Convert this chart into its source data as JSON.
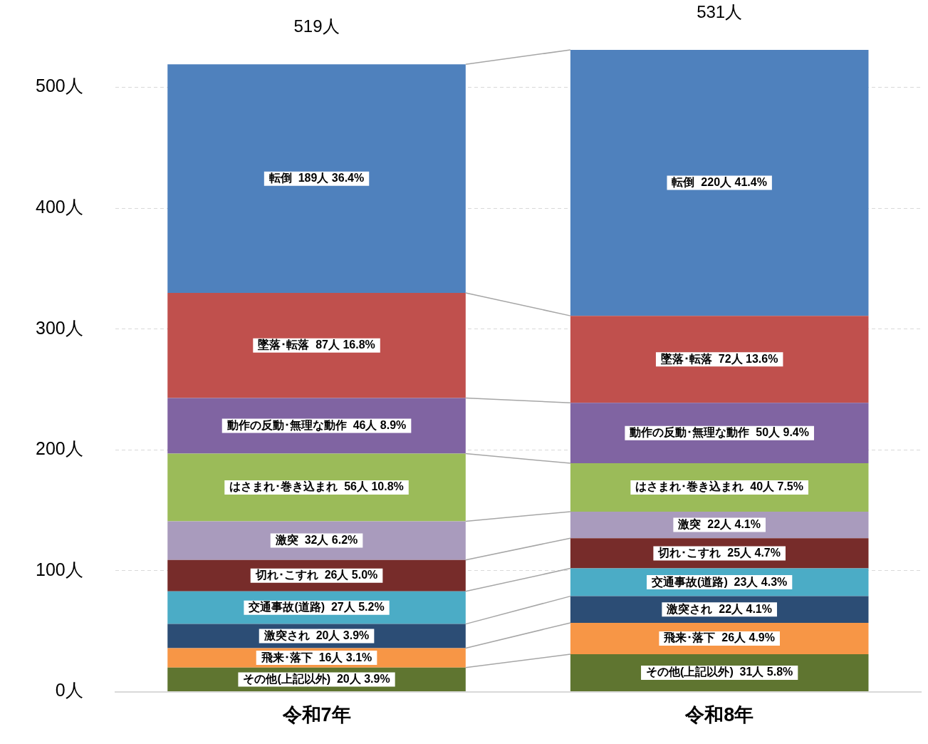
{
  "chart_data": {
    "type": "bar",
    "stacked": true,
    "categories": [
      "令和7年",
      "令和8年"
    ],
    "series": [
      {
        "name": "その他(上記以外)",
        "color": "#5f7530",
        "values": [
          20,
          31
        ],
        "value_labels": [
          "20人 3.9%",
          "31人 5.8%"
        ]
      },
      {
        "name": "飛来･落下",
        "color": "#f79646",
        "values": [
          16,
          26
        ],
        "value_labels": [
          "16人 3.1%",
          "26人 4.9%"
        ]
      },
      {
        "name": "激突され",
        "color": "#2c4d75",
        "values": [
          20,
          22
        ],
        "value_labels": [
          "20人 3.9%",
          "22人 4.1%"
        ]
      },
      {
        "name": "交通事故(道路)",
        "color": "#4bacc6",
        "values": [
          27,
          23
        ],
        "value_labels": [
          "27人 5.2%",
          "23人 4.3%"
        ]
      },
      {
        "name": "切れ･こすれ",
        "color": "#772c2a",
        "values": [
          26,
          25
        ],
        "value_labels": [
          "26人 5.0%",
          "25人 4.7%"
        ]
      },
      {
        "name": "激突",
        "color": "#a99bbd",
        "values": [
          32,
          22
        ],
        "value_labels": [
          "32人 6.2%",
          "22人 4.1%"
        ]
      },
      {
        "name": "はさまれ･巻き込まれ",
        "color": "#9bbb59",
        "values": [
          56,
          40
        ],
        "value_labels": [
          "56人 10.8%",
          "40人 7.5%"
        ]
      },
      {
        "name": "動作の反動･無理な動作",
        "color": "#8064a2",
        "values": [
          46,
          50
        ],
        "value_labels": [
          "46人 8.9%",
          "50人 9.4%"
        ]
      },
      {
        "name": "墜落･転落",
        "color": "#c0504d",
        "values": [
          87,
          72
        ],
        "value_labels": [
          "87人 16.8%",
          "72人 13.6%"
        ]
      },
      {
        "name": "転倒",
        "color": "#4f81bd",
        "values": [
          189,
          220
        ],
        "value_labels": [
          "189人 36.4%",
          "220人 41.4%"
        ]
      }
    ],
    "totals": [
      "519人",
      "531人"
    ],
    "ylim": [
      0,
      531
    ],
    "yticks": [
      {
        "value": 0,
        "label": "0人"
      },
      {
        "value": 100,
        "label": "100人"
      },
      {
        "value": 200,
        "label": "200人"
      },
      {
        "value": 300,
        "label": "300人"
      },
      {
        "value": 400,
        "label": "400人"
      },
      {
        "value": 500,
        "label": "500人"
      }
    ],
    "grid": "y",
    "legend": false
  }
}
